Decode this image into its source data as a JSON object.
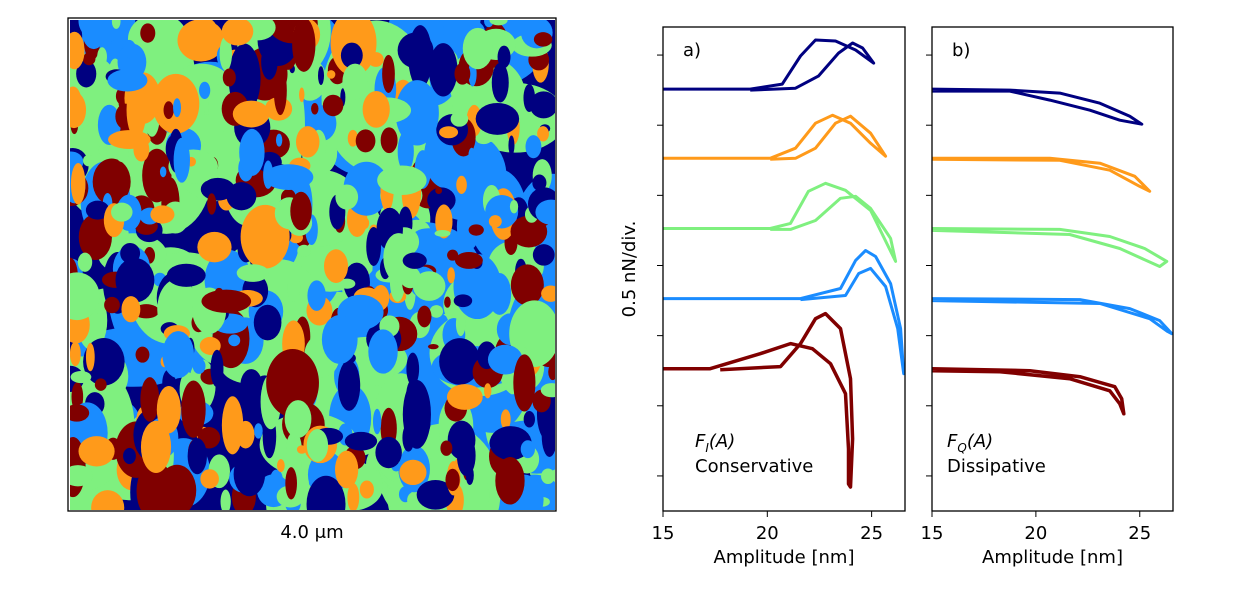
{
  "image": {
    "caption": "4.0 μm"
  },
  "chart_data": [
    {
      "type": "line",
      "panel_label": "a)",
      "annotation": {
        "symbol": "F",
        "subscript": "I",
        "argument": "(A)",
        "text": "Conservative"
      },
      "xlabel": "Amplitude [nm]",
      "ylabel": "0.5 nN/div.",
      "xlim": [
        15,
        26.6
      ],
      "xticks": [
        15,
        20,
        25
      ],
      "ylim": [
        -0.25,
        3.2
      ],
      "yticks": [
        0,
        0.5,
        1,
        1.5,
        2,
        2.5,
        3
      ],
      "series": [
        {
          "color": "#000080",
          "x": [
            15,
            19.18,
            20.72,
            21.59,
            22.31,
            23.27,
            24.23,
            25.1,
            24.57,
            24.09,
            23.41,
            22.45,
            21.35,
            19.18
          ],
          "values": [
            2.757,
            2.757,
            2.793,
            2.993,
            3.107,
            3.1,
            3.036,
            2.943,
            3.05,
            3.086,
            3.014,
            2.85,
            2.764,
            2.75
          ]
        },
        {
          "color": "#ff9a1a",
          "x": [
            15,
            20.14,
            21.35,
            22.31,
            23.13,
            23.99,
            24.95,
            25.67,
            24.95,
            23.99,
            23.27,
            22.31,
            21.35,
            20.14
          ],
          "values": [
            2.264,
            2.264,
            2.336,
            2.514,
            2.571,
            2.514,
            2.371,
            2.279,
            2.443,
            2.564,
            2.514,
            2.336,
            2.264,
            2.257
          ]
        },
        {
          "color": "#7ff07f",
          "x": [
            15,
            20.14,
            21.11,
            21.97,
            22.79,
            23.75,
            24.95,
            26.15,
            25.91,
            24.95,
            24.23,
            23.51,
            22.31,
            21.11,
            20.14
          ],
          "values": [
            1.764,
            1.764,
            1.8,
            2.029,
            2.086,
            2.036,
            1.893,
            1.529,
            1.693,
            1.907,
            1.993,
            1.979,
            1.821,
            1.757,
            1.757
          ]
        },
        {
          "color": "#1a8cff",
          "x": [
            15,
            21.59,
            23.51,
            24.23,
            24.71,
            25.19,
            25.91,
            26.39,
            26.54,
            26.25,
            25.67,
            24.95,
            24.38,
            23.75,
            21.59
          ],
          "values": [
            1.264,
            1.264,
            1.336,
            1.536,
            1.607,
            1.564,
            1.371,
            1.05,
            0.729,
            1.05,
            1.35,
            1.479,
            1.443,
            1.286,
            1.257
          ]
        },
        {
          "color": "#800000",
          "x": [
            15,
            17.26,
            19.66,
            21.11,
            22.16,
            23.03,
            23.75,
            23.89,
            23.89,
            23.99,
            24.09,
            23.99,
            23.51,
            22.79,
            22.31,
            21.59,
            20.63,
            17.74
          ],
          "values": [
            0.764,
            0.764,
            0.871,
            0.943,
            0.907,
            0.8,
            0.586,
            0.193,
            -0.057,
            -0.079,
            0.264,
            0.693,
            1.05,
            1.157,
            1.121,
            0.943,
            0.779,
            0.757
          ]
        }
      ]
    },
    {
      "type": "line",
      "panel_label": "b)",
      "annotation": {
        "symbol": "F",
        "subscript": "Q",
        "argument": "(A)",
        "text": "Dissipative"
      },
      "xlabel": "Amplitude [nm]",
      "xlim": [
        15,
        26.6
      ],
      "xticks": [
        15,
        20,
        25
      ],
      "ylim": [
        -0.25,
        3.2
      ],
      "yticks": [
        0,
        0.5,
        1,
        1.5,
        2,
        2.5,
        3
      ],
      "series": [
        {
          "color": "#000080",
          "x": [
            15,
            18.75,
            21.15,
            23.08,
            24.52,
            25.1,
            24.04,
            22.6,
            20.67,
            18.75,
            15
          ],
          "values": [
            2.757,
            2.75,
            2.729,
            2.657,
            2.564,
            2.507,
            2.536,
            2.607,
            2.679,
            2.743,
            2.743
          ]
        },
        {
          "color": "#ff9a1a",
          "x": [
            15,
            20.67,
            23.08,
            24.76,
            25.48,
            25.0,
            23.56,
            21.15,
            15
          ],
          "values": [
            2.264,
            2.264,
            2.229,
            2.136,
            2.029,
            2.064,
            2.179,
            2.25,
            2.257
          ]
        },
        {
          "color": "#7ff07f",
          "x": [
            15,
            21.15,
            23.56,
            25.24,
            26.3,
            25.96,
            24.04,
            21.63,
            15
          ],
          "values": [
            1.764,
            1.757,
            1.707,
            1.621,
            1.529,
            1.493,
            1.621,
            1.721,
            1.75
          ]
        },
        {
          "color": "#1a8cff",
          "x": [
            15,
            22.12,
            24.52,
            25.96,
            26.54,
            26.35,
            25.48,
            23.08,
            15
          ],
          "values": [
            1.264,
            1.257,
            1.193,
            1.107,
            1.014,
            1.029,
            1.121,
            1.229,
            1.25
          ]
        },
        {
          "color": "#800000",
          "x": [
            15,
            19.71,
            22.12,
            23.8,
            24.13,
            24.23,
            24.04,
            23.56,
            21.63,
            18.27,
            15
          ],
          "values": [
            0.764,
            0.75,
            0.707,
            0.636,
            0.55,
            0.443,
            0.514,
            0.607,
            0.693,
            0.743,
            0.75
          ]
        }
      ]
    }
  ]
}
